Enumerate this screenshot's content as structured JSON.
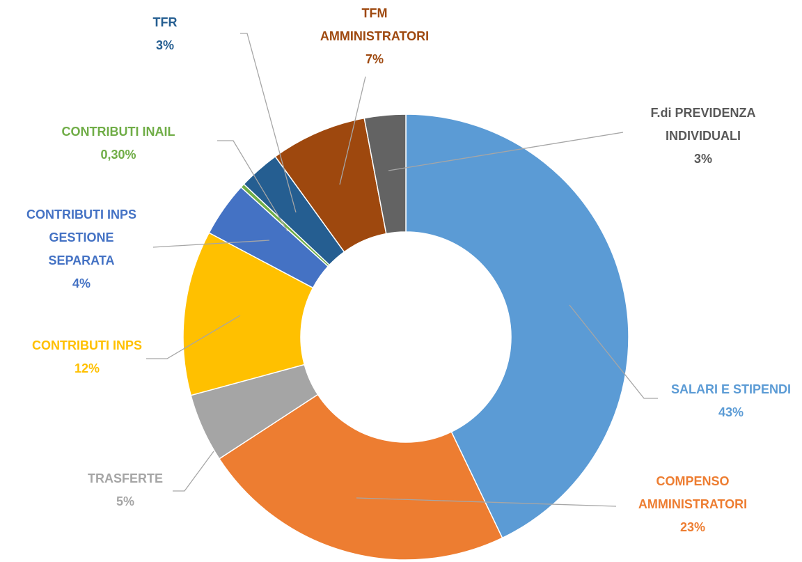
{
  "chart_data": {
    "type": "donut",
    "categories": [
      "SALARI E STIPENDI",
      "COMPENSO\nAMMINISTRATORI",
      "TRASFERTE",
      "CONTRIBUTI INPS",
      "CONTRIBUTI INPS\nGESTIONE\nSEPARATA",
      "CONTRIBUTI INAIL",
      "TFR",
      "TFM\nAMMINISTRATORI",
      "F.di PREVIDENZA\nINDIVIDUALI"
    ],
    "values": [
      43,
      23,
      5,
      12,
      4,
      0.3,
      3,
      7,
      3
    ],
    "value_labels": [
      "43%",
      "23%",
      "5%",
      "12%",
      "4%",
      "0,30%",
      "3%",
      "7%",
      "3%"
    ],
    "colors": [
      "#5b9bd5",
      "#ed7d31",
      "#a5a5a5",
      "#ffc000",
      "#4472c4",
      "#70ad47",
      "#255e91",
      "#9e480e",
      "#636363"
    ],
    "label_colors": [
      "#5b9bd5",
      "#ed7d31",
      "#a5a5a5",
      "#ffc000",
      "#4472c4",
      "#70ad47",
      "#255e91",
      "#9e480e",
      "#595959"
    ]
  }
}
